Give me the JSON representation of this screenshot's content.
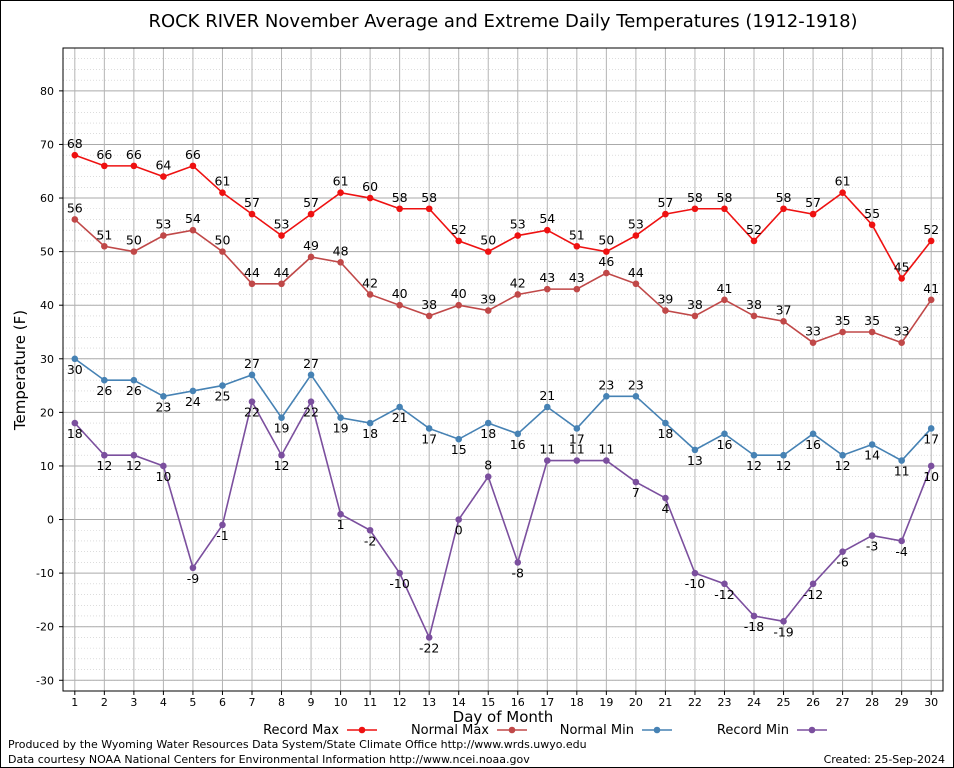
{
  "footer": {
    "credit1": "Produced by the Wyoming Water Resources Data System/State Climate Office http://www.wrds.uwyo.edu",
    "credit2": "Data courtesy NOAA National Centers for Environmental Information http://www.ncei.noaa.gov",
    "created": "Created:  25-Sep-2024"
  },
  "chart_data": {
    "type": "line",
    "title": "ROCK RIVER November Average and Extreme Daily Temperatures (1912-1918)",
    "xlabel": "Day of Month",
    "ylabel": "Temperature (F)",
    "x": [
      1,
      2,
      3,
      4,
      5,
      6,
      7,
      8,
      9,
      10,
      11,
      12,
      13,
      14,
      15,
      16,
      17,
      18,
      19,
      20,
      21,
      22,
      23,
      24,
      25,
      26,
      27,
      28,
      29,
      30
    ],
    "xlim": [
      0.6,
      30.4
    ],
    "ylim": [
      -32,
      88
    ],
    "yticks": [
      -30,
      -20,
      -10,
      0,
      10,
      20,
      30,
      40,
      50,
      60,
      70,
      80
    ],
    "grid": true,
    "legend_position": "bottom",
    "series": [
      {
        "name": "Record Max",
        "color": "#ee1111",
        "label_pos": "above",
        "values": [
          68,
          66,
          66,
          64,
          66,
          61,
          57,
          53,
          57,
          61,
          60,
          58,
          58,
          52,
          50,
          53,
          54,
          51,
          50,
          53,
          57,
          58,
          58,
          52,
          58,
          57,
          61,
          55,
          45,
          52
        ]
      },
      {
        "name": "Normal Max",
        "color": "#c04848",
        "label_pos": "above",
        "values": [
          56,
          51,
          50,
          53,
          54,
          50,
          44,
          44,
          49,
          48,
          42,
          40,
          38,
          40,
          39,
          42,
          43,
          43,
          46,
          44,
          39,
          38,
          41,
          38,
          37,
          33,
          35,
          35,
          33,
          41
        ]
      },
      {
        "name": "Normal Min",
        "color": "#4682b4",
        "label_pos": "mixed",
        "label_above": [
          7,
          9,
          17,
          19,
          20
        ],
        "values": [
          30,
          26,
          26,
          23,
          24,
          25,
          27,
          19,
          27,
          19,
          18,
          21,
          17,
          15,
          18,
          16,
          21,
          17,
          23,
          23,
          18,
          13,
          16,
          12,
          12,
          16,
          12,
          14,
          11,
          17
        ]
      },
      {
        "name": "Record Min",
        "color": "#7b4f9e",
        "label_pos": "mixed",
        "label_above": [
          15,
          17,
          18,
          19
        ],
        "values": [
          18,
          12,
          12,
          10,
          -9,
          -1,
          22,
          12,
          22,
          1,
          -2,
          -10,
          -22,
          0,
          8,
          -8,
          11,
          11,
          11,
          7,
          4,
          -10,
          -12,
          -18,
          -19,
          -12,
          -6,
          -3,
          -4,
          10
        ]
      }
    ]
  }
}
